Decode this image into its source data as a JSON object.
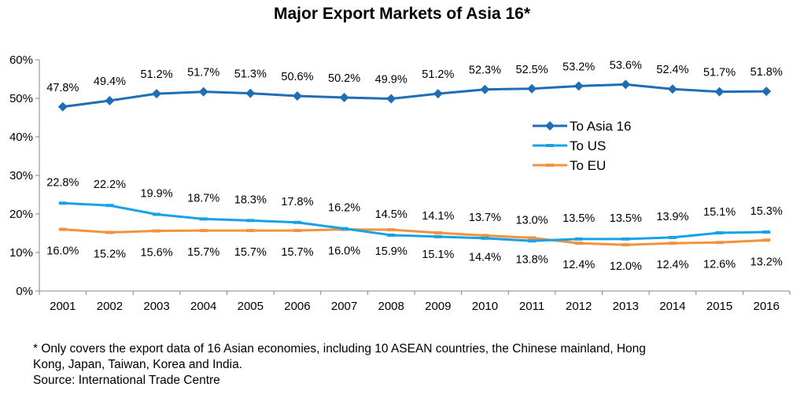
{
  "chart_data": {
    "type": "line",
    "title": "Major Export Markets of Asia 16*",
    "categories": [
      "2001",
      "2002",
      "2003",
      "2004",
      "2005",
      "2006",
      "2007",
      "2008",
      "2009",
      "2010",
      "2011",
      "2012",
      "2013",
      "2014",
      "2015",
      "2016"
    ],
    "yticks": [
      "0%",
      "10%",
      "20%",
      "30%",
      "40%",
      "50%",
      "60%"
    ],
    "ylim": [
      0,
      60
    ],
    "grid": false,
    "legend_position": "right",
    "series": [
      {
        "name": "To Asia 16",
        "color": "#1f6db5",
        "marker": "diamond",
        "values": [
          47.8,
          49.4,
          51.2,
          51.7,
          51.3,
          50.6,
          50.2,
          49.9,
          51.2,
          52.3,
          52.5,
          53.2,
          53.6,
          52.4,
          51.7,
          51.8
        ],
        "labels": [
          "47.8%",
          "49.4%",
          "51.2%",
          "51.7%",
          "51.3%",
          "50.6%",
          "50.2%",
          "49.9%",
          "51.2%",
          "52.3%",
          "52.5%",
          "53.2%",
          "53.6%",
          "52.4%",
          "51.7%",
          "51.8%"
        ]
      },
      {
        "name": "To US",
        "color": "#17a2e8",
        "marker": "dash",
        "values": [
          22.8,
          22.2,
          19.9,
          18.7,
          18.3,
          17.8,
          16.2,
          14.5,
          14.1,
          13.7,
          13.0,
          13.5,
          13.5,
          13.9,
          15.1,
          15.3
        ],
        "labels": [
          "22.8%",
          "22.2%",
          "19.9%",
          "18.7%",
          "18.3%",
          "17.8%",
          "16.2%",
          "14.5%",
          "14.1%",
          "13.7%",
          "13.0%",
          "13.5%",
          "13.5%",
          "13.9%",
          "15.1%",
          "15.3%"
        ]
      },
      {
        "name": "To EU",
        "color": "#f3923c",
        "marker": "dash",
        "values": [
          16.0,
          15.2,
          15.6,
          15.7,
          15.7,
          15.7,
          16.0,
          15.9,
          15.1,
          14.4,
          13.8,
          12.4,
          12.0,
          12.4,
          12.6,
          13.2
        ],
        "labels": [
          "16.0%",
          "15.2%",
          "15.6%",
          "15.7%",
          "15.7%",
          "15.7%",
          "16.0%",
          "15.9%",
          "15.1%",
          "14.4%",
          "13.8%",
          "12.4%",
          "12.0%",
          "12.4%",
          "12.6%",
          "13.2%"
        ]
      }
    ]
  },
  "footnote": {
    "line1": "* Only covers the export data of 16 Asian economies, including 10 ASEAN countries, the Chinese mainland, Hong",
    "line2": "Kong, Japan, Taiwan, Korea and India.",
    "line3": "Source: International Trade Centre"
  }
}
